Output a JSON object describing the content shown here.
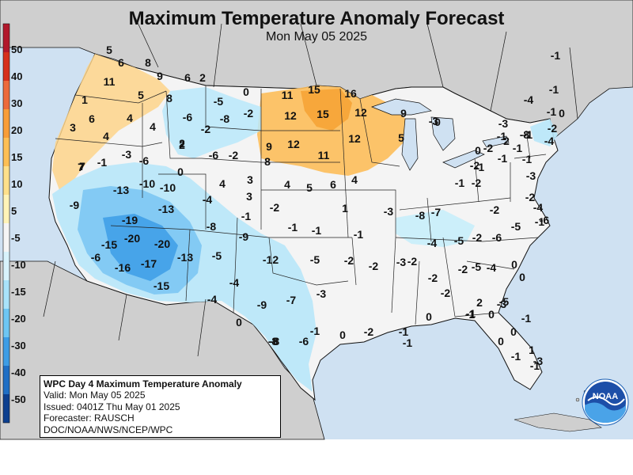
{
  "header": {
    "title": "Maximum Temperature Anomaly Forecast",
    "subtitle": "Mon May 05 2025"
  },
  "legend": {
    "labels": [
      "50",
      "40",
      "30",
      "20",
      "15",
      "10",
      "5",
      "-5",
      "-10",
      "-15",
      "-20",
      "-30",
      "-40",
      "-50"
    ],
    "colors": [
      "#b2182b",
      "#d6301d",
      "#ec6a3c",
      "#f89d38",
      "#fdbf55",
      "#fee08b",
      "#fff3b8",
      "#f5f5f5",
      "#d8f3fc",
      "#a9e3fa",
      "#6ec6f3",
      "#3d9de6",
      "#1f6fc5",
      "#0c3f8f"
    ]
  },
  "info": {
    "title": "WPC Day 4 Maximum Temperature Anomaly",
    "valid": "Valid: Mon May 05 2025",
    "issued": "Issued: 0401Z Thu May 01 2025",
    "forecaster": "Forecaster: RAUSCH",
    "agency": "DOC/NOAA/NWS/NCEP/WPC"
  },
  "logo": {
    "text": "NOAA"
  },
  "colors": {
    "ocean": "#cfe1f2",
    "land": "#f4f4f4",
    "foreign_land": "#cfcfcf",
    "warm": "#fdd48a",
    "cool": "#b8e7fa",
    "cold": "#55aaf0"
  },
  "anomalies": [
    "5",
    "6",
    "8",
    "9",
    "6",
    "2",
    "11",
    "5",
    "8",
    "1",
    "6",
    "4",
    "4",
    "3",
    "7",
    "4",
    "-1",
    "-3",
    "-6",
    "0",
    "2",
    "-5",
    "0",
    "-6",
    "-8",
    "-2",
    "-2",
    "-6",
    "-2",
    "11",
    "15",
    "16",
    "12",
    "15",
    "12",
    "9",
    "0",
    "9",
    "12",
    "8",
    "11",
    "12",
    "5",
    "7",
    "-13",
    "-10",
    "-10",
    "-13",
    "4",
    "3",
    "3",
    "5",
    "4",
    "6",
    "4",
    "-4",
    "-1",
    "-2",
    "1",
    "2",
    "-1",
    "-1",
    "-9",
    "-19",
    "-20",
    "-15",
    "-20",
    "-8",
    "-6",
    "-16",
    "-17",
    "-13",
    "-15",
    "-5",
    "-9",
    "-8",
    "-2",
    "-1",
    "-1",
    "-3",
    "-7",
    "-8",
    "-12",
    "-5",
    "-2",
    "-2",
    "-3",
    "-4",
    "-9",
    "-7",
    "-3",
    "0",
    "-4",
    "-8",
    "-6",
    "-1",
    "0",
    "-2",
    "-1",
    "0",
    "-2",
    "-5",
    "-4",
    "-2",
    "-2",
    "-5",
    "-4",
    "-6",
    "-5",
    "-1",
    "-2",
    "0",
    "-5",
    "0",
    "-1",
    "-1",
    "0",
    "-2",
    "-1",
    "-2",
    "-2",
    "2",
    "-1",
    "-1",
    "0",
    "-3",
    "-2",
    "-1",
    "-1",
    "-2",
    "-1",
    "-3",
    "-1",
    "-1",
    "-4",
    "-2",
    "-1",
    "-1",
    "-1",
    "0",
    "0",
    "-4",
    "-8",
    "2",
    "-1",
    "-3",
    "-4",
    "-6",
    "-3",
    "-1",
    "1",
    "0",
    "-3",
    "0",
    "-1",
    "0"
  ]
}
